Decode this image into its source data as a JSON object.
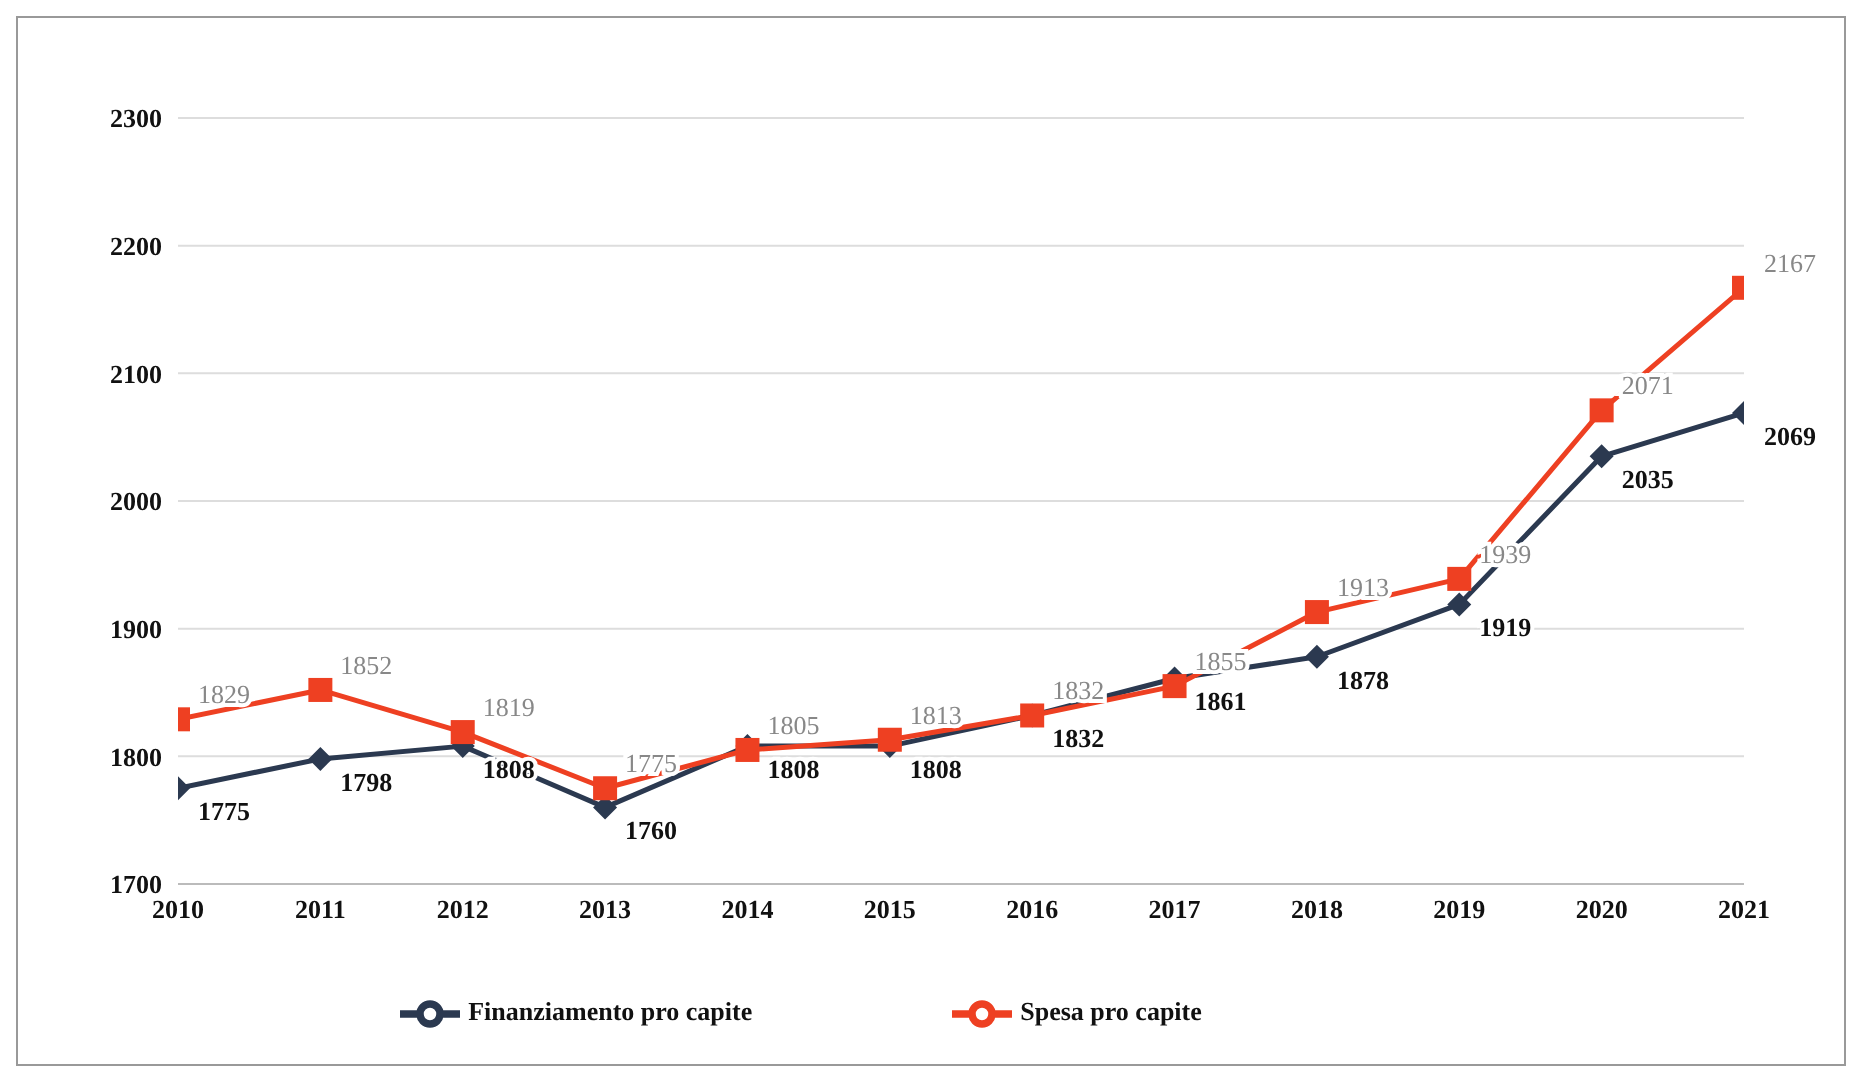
{
  "chart_data": {
    "type": "line",
    "x": [
      2010,
      2011,
      2012,
      2013,
      2014,
      2015,
      2016,
      2017,
      2018,
      2019,
      2020,
      2021
    ],
    "xlim": [
      2010,
      2021
    ],
    "xticks": [
      2010,
      2011,
      2012,
      2013,
      2014,
      2015,
      2016,
      2017,
      2018,
      2019,
      2020,
      2021
    ],
    "ylim": [
      1700,
      2300
    ],
    "yticks": [
      1700,
      1800,
      1900,
      2000,
      2100,
      2200,
      2300
    ],
    "grid": "y",
    "legend": "bottom",
    "data_labels": true,
    "series": [
      {
        "name": "Finanziamento pro capite",
        "color": "#2b3950",
        "marker": "diamond",
        "values": [
          1775,
          1798,
          1808,
          1760,
          1808,
          1808,
          1832,
          1861,
          1878,
          1919,
          2035,
          2069
        ]
      },
      {
        "name": "Spesa pro capite",
        "color": "#ee4022",
        "marker": "square",
        "values": [
          1829,
          1852,
          1819,
          1775,
          1805,
          1813,
          1832,
          1855,
          1913,
          1939,
          2071,
          2167
        ]
      }
    ]
  }
}
